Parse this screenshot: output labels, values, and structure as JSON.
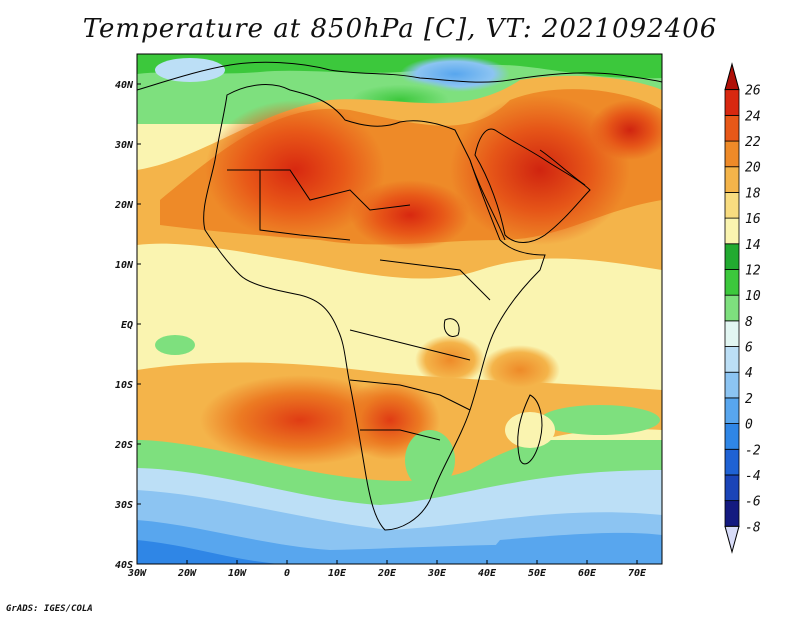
{
  "title": "Temperature at 850hPa [C], VT: 2021092406",
  "credit": "GrADS: IGES/COLA",
  "map": {
    "lon_range": [
      -30,
      75
    ],
    "lat_range": [
      -40,
      45
    ],
    "lon_ticks": [
      {
        "value": -30,
        "label": "30W"
      },
      {
        "value": -20,
        "label": "20W"
      },
      {
        "value": -10,
        "label": "10W"
      },
      {
        "value": 0,
        "label": "0"
      },
      {
        "value": 10,
        "label": "10E"
      },
      {
        "value": 20,
        "label": "20E"
      },
      {
        "value": 30,
        "label": "30E"
      },
      {
        "value": 40,
        "label": "40E"
      },
      {
        "value": 50,
        "label": "50E"
      },
      {
        "value": 60,
        "label": "60E"
      },
      {
        "value": 70,
        "label": "70E"
      }
    ],
    "lat_ticks": [
      {
        "value": 40,
        "label": "40N"
      },
      {
        "value": 30,
        "label": "30N"
      },
      {
        "value": 20,
        "label": "20N"
      },
      {
        "value": 10,
        "label": "10N"
      },
      {
        "value": 0,
        "label": "EQ"
      },
      {
        "value": -10,
        "label": "10S"
      },
      {
        "value": -20,
        "label": "20S"
      },
      {
        "value": -30,
        "label": "30S"
      },
      {
        "value": -40,
        "label": "40S"
      }
    ]
  },
  "colorbar": {
    "levels": [
      "-8",
      "-6",
      "-4",
      "-2",
      "0",
      "2",
      "4",
      "6",
      "8",
      "10",
      "12",
      "14",
      "16",
      "18",
      "20",
      "22",
      "24",
      "26"
    ],
    "colors": [
      "#d8dcf8",
      "#141a80",
      "#1a44b8",
      "#1f62d4",
      "#2f86e6",
      "#58a6ee",
      "#8cc4f2",
      "#bcdff6",
      "#e2f6f2",
      "#7ee07e",
      "#3cc83c",
      "#22aa30",
      "#faf4b0",
      "#f8dc80",
      "#f4b44a",
      "#ee8a28",
      "#e85818",
      "#d82810",
      "#b01008"
    ]
  }
}
